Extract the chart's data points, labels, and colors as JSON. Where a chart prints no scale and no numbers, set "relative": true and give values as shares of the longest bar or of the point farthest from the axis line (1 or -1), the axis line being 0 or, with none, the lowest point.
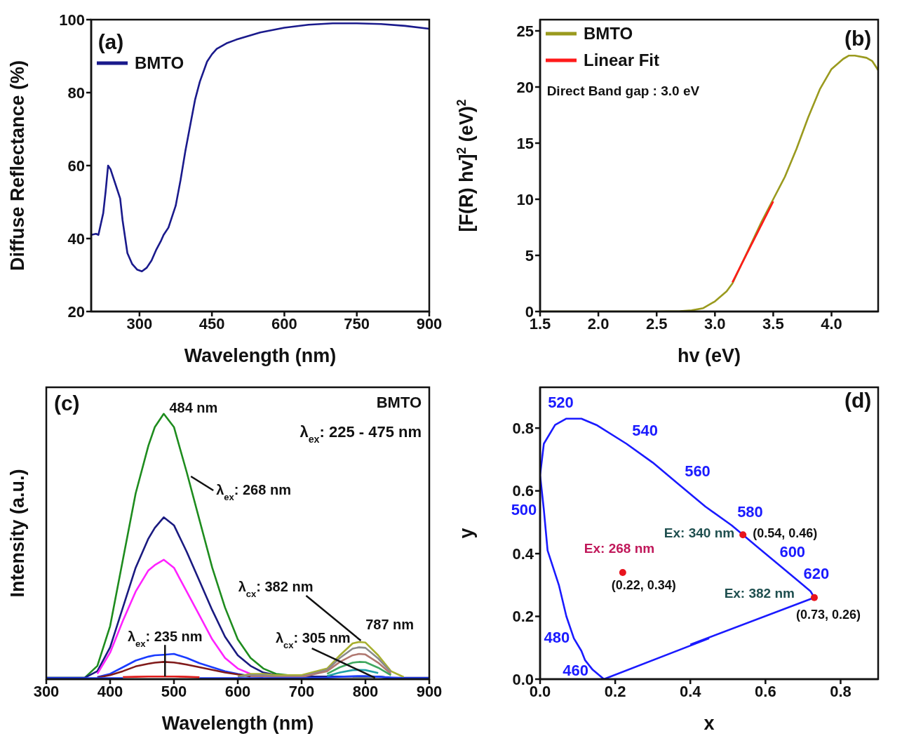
{
  "chart_data": [
    {
      "type": "line",
      "xlabel": "Wavelength (nm)",
      "ylabel": "Diffuse Reflectance (%)",
      "annotations": [
        "(a)"
      ],
      "x": [
        200,
        210,
        215,
        225,
        230,
        235,
        240,
        250,
        260,
        265,
        275,
        285,
        295,
        305,
        315,
        325,
        335,
        345,
        350,
        360,
        375,
        385,
        395,
        405,
        415,
        425,
        440,
        450,
        460,
        480,
        500,
        550,
        600,
        650,
        700,
        750,
        800,
        850,
        900
      ],
      "series": [
        {
          "name": "BMTO",
          "color": "#1a1a8c",
          "values": [
            41,
            41.3,
            41,
            47,
            53,
            60,
            59,
            55,
            51,
            45,
            36,
            33,
            31.5,
            31,
            32,
            34,
            37,
            39.5,
            41,
            43,
            49,
            56,
            64,
            71,
            78,
            83,
            88.5,
            90.5,
            92,
            93.5,
            94.5,
            96.5,
            97.8,
            98.6,
            99,
            99,
            98.8,
            98.3,
            97.5
          ]
        }
      ],
      "xlim": [
        200,
        900
      ],
      "xticks": [
        300,
        450,
        600,
        750,
        900
      ],
      "ylim": [
        20,
        100
      ],
      "yticks": [
        20,
        40,
        60,
        80,
        100
      ],
      "legend": "top left"
    },
    {
      "type": "line",
      "xlabel": "hv (eV)",
      "ylabel": "[F(R) hv]$^{2}$ (eV)$^{2}$",
      "annotations": [
        "(b)",
        "Direct Band gap : 3.0 eV"
      ],
      "series": [
        {
          "name": "BMTO",
          "color": "#9a9a1e",
          "x": [
            1.5,
            2.5,
            2.7,
            2.8,
            2.9,
            3.0,
            3.1,
            3.15,
            3.2,
            3.3,
            3.4,
            3.5,
            3.6,
            3.7,
            3.8,
            3.9,
            4.0,
            4.1,
            4.15,
            4.2,
            4.3,
            4.35,
            4.4
          ],
          "values": [
            0,
            0,
            0.03,
            0.1,
            0.3,
            0.9,
            1.8,
            2.5,
            3.6,
            5.8,
            8.0,
            10.0,
            12.0,
            14.5,
            17.3,
            19.8,
            21.6,
            22.5,
            22.8,
            22.8,
            22.6,
            22.3,
            21.5
          ]
        },
        {
          "name": "Linear Fit",
          "color": "#ff1a1a",
          "x": [
            3.15,
            3.5
          ],
          "values": [
            2.6,
            9.8
          ]
        }
      ],
      "xlim": [
        1.5,
        4.4
      ],
      "xticks": [
        1.5,
        {
          "value": 2,
          "label": "2.0"
        },
        2.5,
        {
          "value": 3,
          "label": "3.0"
        },
        3.5,
        {
          "value": 4,
          "label": "4.0"
        }
      ],
      "ylim": [
        0,
        26
      ],
      "yticks": [
        0,
        5,
        10,
        15,
        20,
        25
      ],
      "legend": "top left"
    },
    {
      "type": "line",
      "relative": true,
      "tick_labels": "x",
      "xlabel": "Wavelength (nm)",
      "ylabel": "Intensity (a.u.)",
      "annotations": [
        "(c)",
        "BMTO",
        "λ$_{ex}$: 225 - 475 nm",
        {
          "text": "484 nm",
          "x": 484,
          "y": 1
        },
        {
          "text": "λ$_{ex}$: 268 nm",
          "x": 520,
          "y": 0.78
        },
        {
          "text": "λ$_{ex}$: 235 nm",
          "x": 486,
          "y": 0.01
        },
        {
          "text": "λ$_{cx}$: 305 nm",
          "x": 815,
          "y": 0.005
        },
        {
          "text": "λ$_{cx}$: 382 nm",
          "x": 795,
          "y": 0.14
        },
        {
          "text": "787 nm",
          "x": 787,
          "y": 0.14
        }
      ],
      "x": [
        300,
        360,
        380,
        400,
        420,
        440,
        460,
        470,
        484,
        500,
        520,
        540,
        560,
        580,
        600,
        620,
        640,
        660,
        700,
        740,
        760,
        780,
        790,
        800,
        820,
        840,
        860,
        900
      ],
      "series": [
        {
          "color": "#1e8c1e",
          "values": [
            0.005,
            0.005,
            0.05,
            0.2,
            0.45,
            0.7,
            0.88,
            0.95,
            1,
            0.95,
            0.78,
            0.6,
            0.42,
            0.27,
            0.15,
            0.08,
            0.04,
            0.02,
            0.01,
            0.01,
            null,
            0.01,
            0.01,
            0.01,
            0.01,
            0.005,
            null,
            null
          ]
        },
        {
          "color": "#1a1a80",
          "values": [
            0.005,
            0.005,
            0.03,
            0.12,
            0.27,
            0.42,
            0.53,
            0.57,
            0.61,
            0.58,
            0.48,
            0.37,
            0.26,
            0.16,
            0.09,
            0.05,
            0.025,
            0.015,
            0.01,
            0.01,
            0.01,
            0.01,
            0.01,
            0.01,
            0.01,
            0.005,
            0.005,
            0.005
          ]
        },
        {
          "color": "#ff22ff",
          "values": [
            null,
            null,
            0.02,
            0.1,
            0.22,
            0.33,
            0.41,
            0.43,
            0.45,
            0.42,
            0.33,
            0.24,
            0.15,
            0.08,
            0.04,
            0.02,
            null,
            null,
            null,
            null,
            null,
            null,
            null,
            null,
            null,
            null,
            null,
            null
          ]
        },
        {
          "color": "#1a3cff",
          "values": [
            null,
            null,
            0.008,
            0.02,
            0.045,
            0.07,
            0.085,
            0.09,
            0.092,
            0.095,
            0.08,
            0.06,
            0.045,
            0.03,
            0.02,
            0.012,
            0.008,
            null,
            null,
            null,
            null,
            null,
            null,
            null,
            null,
            null,
            null,
            null
          ]
        },
        {
          "color": "#801a1a",
          "values": [
            null,
            null,
            0.006,
            0.015,
            0.03,
            0.048,
            0.058,
            0.062,
            0.065,
            0.063,
            0.055,
            0.045,
            0.035,
            0.025,
            0.018,
            0.01,
            null,
            null,
            null,
            null,
            null,
            null,
            null,
            null,
            null,
            null,
            null,
            null
          ]
        },
        {
          "color": "#e01a1a",
          "values": [
            null,
            null,
            null,
            null,
            0.008,
            0.009,
            0.01,
            0.01,
            0.01,
            0.01,
            0.009,
            0.007,
            null,
            null,
            null,
            null,
            null,
            null,
            null,
            null,
            null,
            null,
            null,
            null,
            null,
            null,
            null,
            null
          ]
        },
        {
          "color": "#a8b030",
          "values": [
            null,
            null,
            null,
            null,
            null,
            null,
            null,
            null,
            null,
            null,
            null,
            null,
            null,
            null,
            0.01,
            0.02,
            0.02,
            0.015,
            0.015,
            0.04,
            0.09,
            0.135,
            0.14,
            0.138,
            0.09,
            0.03,
            0.008,
            null
          ]
        },
        {
          "color": "#8a8a8a",
          "values": [
            null,
            null,
            null,
            null,
            null,
            null,
            null,
            null,
            null,
            null,
            null,
            null,
            null,
            null,
            0.008,
            0.015,
            0.015,
            0.01,
            0.01,
            0.035,
            0.08,
            0.115,
            0.12,
            0.118,
            0.078,
            0.026,
            null,
            null
          ]
        },
        {
          "color": "#b07870",
          "values": [
            null,
            null,
            null,
            null,
            null,
            null,
            null,
            null,
            null,
            null,
            null,
            null,
            null,
            null,
            null,
            0.01,
            0.01,
            0.008,
            0.008,
            0.03,
            0.065,
            0.09,
            0.095,
            0.093,
            0.062,
            0.02,
            null,
            null
          ]
        },
        {
          "color": "#40a860",
          "values": [
            null,
            null,
            null,
            null,
            null,
            null,
            null,
            null,
            null,
            null,
            null,
            null,
            null,
            null,
            null,
            null,
            null,
            null,
            null,
            0.02,
            0.045,
            0.062,
            0.065,
            0.064,
            0.043,
            0.015,
            null,
            null
          ]
        },
        {
          "color": "#20a0a8",
          "values": [
            null,
            null,
            null,
            null,
            null,
            null,
            null,
            null,
            null,
            null,
            null,
            null,
            null,
            null,
            null,
            null,
            null,
            null,
            null,
            0.012,
            0.025,
            0.034,
            0.035,
            0.034,
            0.023,
            null,
            null,
            null
          ]
        },
        {
          "color": "#2040ff",
          "values": [
            0.004,
            0.004,
            0.004,
            0.004,
            0.004,
            null,
            null,
            null,
            null,
            null,
            null,
            0.004,
            0.004,
            0.004,
            0.004,
            0.004,
            0.004,
            0.004,
            0.004,
            0.006,
            0.009,
            0.011,
            0.012,
            0.012,
            0.009,
            0.006,
            0.004,
            0.004
          ]
        }
      ],
      "xlim": [
        300,
        900
      ],
      "xticks": [
        300,
        400,
        500,
        600,
        700,
        800,
        900
      ]
    },
    {
      "type": "scatter",
      "xlabel": "x",
      "ylabel": "y",
      "annotations": [
        "(d)",
        {
          "text": "520",
          "x": 0.07,
          "y": 0.83
        },
        {
          "text": "540",
          "x": 0.23,
          "y": 0.75
        },
        {
          "text": "560",
          "x": 0.37,
          "y": 0.62
        },
        {
          "text": "580",
          "x": 0.51,
          "y": 0.49
        },
        {
          "text": "600",
          "x": 0.63,
          "y": 0.37
        },
        {
          "text": "620",
          "x": 0.69,
          "y": 0.31
        },
        {
          "text": "500",
          "x": 0.01,
          "y": 0.54
        },
        {
          "text": "480",
          "x": 0.09,
          "y": 0.13
        },
        {
          "text": "460",
          "x": 0.14,
          "y": 0.03
        },
        {
          "text": "Ex: 268 nm",
          "x": 0.22,
          "y": 0.34
        },
        {
          "text": "(0.22, 0.34)",
          "x": 0.22,
          "y": 0.34
        },
        {
          "text": "Ex: 340 nm",
          "x": 0.54,
          "y": 0.46
        },
        {
          "text": "(0.54, 0.46)",
          "x": 0.54,
          "y": 0.46
        },
        {
          "text": "Ex: 382 nm",
          "x": 0.73,
          "y": 0.26
        },
        {
          "text": "(0.73, 0.26)",
          "x": 0.73,
          "y": 0.26
        }
      ],
      "series": [
        {
          "type": "line",
          "color": "#1a1aff",
          "x": [
            0.45,
            0.17,
            0.14,
            0.12,
            0.11,
            0.09,
            0.07,
            0.05,
            0.02,
            0.01,
            0.0,
            0.01,
            0.04,
            0.07,
            0.11,
            0.15,
            0.23,
            0.3,
            0.37,
            0.44,
            0.51,
            0.58,
            0.63,
            0.69,
            0.72,
            0.73,
            0.4
          ],
          "values": [
            0.13,
            0.0,
            0.03,
            0.06,
            0.09,
            0.13,
            0.2,
            0.3,
            0.41,
            0.54,
            0.65,
            0.75,
            0.81,
            0.83,
            0.83,
            0.81,
            0.75,
            0.69,
            0.62,
            0.55,
            0.49,
            0.42,
            0.37,
            0.31,
            0.28,
            0.26,
            0.11
          ]
        },
        {
          "color": "#e8141e",
          "marker": "circle",
          "x": [
            0.22,
            0.54,
            0.73
          ],
          "values": [
            0.34,
            0.46,
            0.26
          ]
        }
      ],
      "xlim": [
        0,
        0.9
      ],
      "xticks": [
        {
          "value": 0,
          "label": "0.0"
        },
        0.2,
        0.4,
        0.6,
        0.8
      ],
      "ylim": [
        0,
        0.93
      ],
      "yticks": [
        {
          "value": 0,
          "label": "0.0"
        },
        0.2,
        0.4,
        0.6,
        0.8
      ]
    }
  ]
}
